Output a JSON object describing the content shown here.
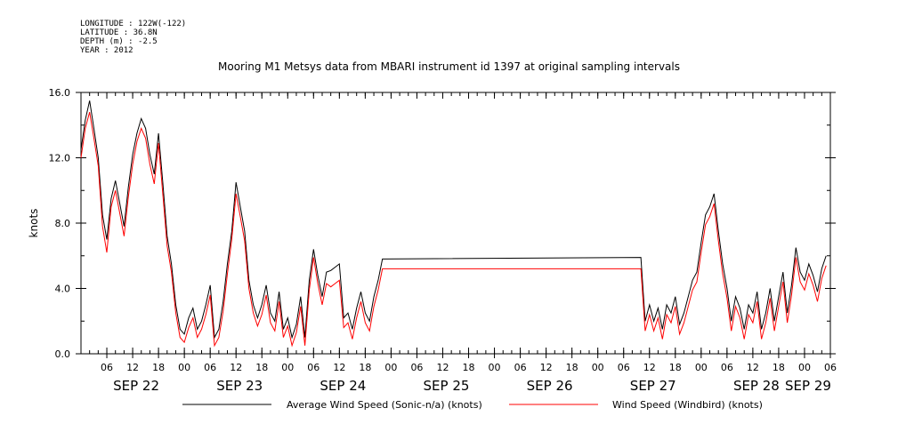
{
  "meta_lines": [
    "LONGITUDE : 122W(-122)",
    "LATITUDE : 36.8N",
    "DEPTH (m) : -2.5",
    "YEAR : 2012"
  ],
  "chart_data": {
    "type": "line",
    "title": "Mooring M1 Metsys data from MBARI instrument id 1397 at original sampling intervals",
    "ylabel": "knots",
    "xlabel": "",
    "ylim": [
      0,
      16
    ],
    "yticks": [
      "0.0",
      "4.0",
      "8.0",
      "12.0",
      "16.0"
    ],
    "xlim": [
      0,
      174
    ],
    "x_unit": "hours since SEP 22 00",
    "hour_tick_labels": [
      "06",
      "12",
      "18",
      "00",
      "06",
      "12",
      "18",
      "00",
      "06",
      "12",
      "18",
      "00",
      "06",
      "12",
      "18",
      "00",
      "06",
      "12",
      "18",
      "00",
      "06",
      "12",
      "18",
      "00",
      "06",
      "12",
      "18",
      "00",
      "06"
    ],
    "hour_tick_positions": [
      6,
      12,
      18,
      24,
      30,
      36,
      42,
      48,
      54,
      60,
      66,
      72,
      78,
      84,
      90,
      96,
      102,
      108,
      114,
      120,
      126,
      132,
      138,
      144,
      150,
      156,
      162,
      168,
      174
    ],
    "day_labels": [
      {
        "label": "SEP 22",
        "x": 12
      },
      {
        "label": "SEP 23",
        "x": 36
      },
      {
        "label": "SEP 24",
        "x": 60
      },
      {
        "label": "SEP 25",
        "x": 84
      },
      {
        "label": "SEP 26",
        "x": 108
      },
      {
        "label": "SEP 27",
        "x": 132
      },
      {
        "label": "SEP 28",
        "x": 156
      },
      {
        "label": "SEP 29",
        "x": 168
      }
    ],
    "series": [
      {
        "name": "Average Wind Speed (Sonic-n/a) (knots)",
        "color": "#000000",
        "x": [
          0,
          1,
          2,
          3,
          4,
          5,
          6,
          7,
          8,
          9,
          10,
          11,
          12,
          13,
          14,
          15,
          16,
          17,
          18,
          19,
          20,
          21,
          22,
          23,
          24,
          25,
          26,
          27,
          28,
          29,
          30,
          31,
          32,
          33,
          34,
          35,
          36,
          37,
          38,
          39,
          40,
          41,
          42,
          43,
          44,
          45,
          46,
          47,
          48,
          49,
          50,
          51,
          52,
          53,
          54,
          55,
          56,
          57,
          58,
          59,
          60,
          61,
          62,
          63,
          64,
          65,
          66,
          67,
          68,
          69,
          70,
          130,
          131,
          132,
          133,
          134,
          135,
          136,
          137,
          138,
          139,
          140,
          141,
          142,
          143,
          144,
          145,
          146,
          147,
          148,
          149,
          150,
          151,
          152,
          153,
          154,
          155,
          156,
          157,
          158,
          159,
          160,
          161,
          162,
          163,
          164,
          165,
          166,
          167,
          168,
          169,
          170,
          171,
          172,
          173
        ],
        "y": [
          12.5,
          14.3,
          15.5,
          13.8,
          12.0,
          8.5,
          7.0,
          9.5,
          10.6,
          9.2,
          7.8,
          10.2,
          12.2,
          13.5,
          14.4,
          13.8,
          12.2,
          11.0,
          13.5,
          10.5,
          7.2,
          5.5,
          3.0,
          1.5,
          1.2,
          2.2,
          2.8,
          1.5,
          2.0,
          3.0,
          4.2,
          1.0,
          1.5,
          3.2,
          5.5,
          7.5,
          10.5,
          9.0,
          7.5,
          4.5,
          3.0,
          2.2,
          3.0,
          4.2,
          2.5,
          2.0,
          3.8,
          1.5,
          2.2,
          1.0,
          1.8,
          3.5,
          1.0,
          4.5,
          6.4,
          4.8,
          3.5,
          5.0,
          5.1,
          5.3,
          5.5,
          2.2,
          2.5,
          1.5,
          2.8,
          3.8,
          2.5,
          2.0,
          3.5,
          4.5,
          5.8,
          5.9,
          2.0,
          3.0,
          2.0,
          2.8,
          1.5,
          3.0,
          2.5,
          3.5,
          1.8,
          2.5,
          3.5,
          4.5,
          5.0,
          6.8,
          8.5,
          9.0,
          9.8,
          7.5,
          5.5,
          4.0,
          2.0,
          3.5,
          2.8,
          1.5,
          3.0,
          2.5,
          3.8,
          1.5,
          2.5,
          4.0,
          2.0,
          3.5,
          5.0,
          2.5,
          4.2,
          6.5,
          5.0,
          4.5,
          5.5,
          4.8,
          3.8,
          5.2,
          6.0
        ],
        "path_breaks": []
      },
      {
        "name": "Wind Speed (Windbird) (knots)",
        "color": "#ff0000",
        "x": [
          0,
          1,
          2,
          3,
          4,
          5,
          6,
          7,
          8,
          9,
          10,
          11,
          12,
          13,
          14,
          15,
          16,
          17,
          18,
          19,
          20,
          21,
          22,
          23,
          24,
          25,
          26,
          27,
          28,
          29,
          30,
          31,
          32,
          33,
          34,
          35,
          36,
          37,
          38,
          39,
          40,
          41,
          42,
          43,
          44,
          45,
          46,
          47,
          48,
          49,
          50,
          51,
          52,
          53,
          54,
          55,
          56,
          57,
          58,
          59,
          60,
          61,
          62,
          63,
          64,
          65,
          66,
          67,
          68,
          69,
          70,
          130,
          131,
          132,
          133,
          134,
          135,
          136,
          137,
          138,
          139,
          140,
          141,
          142,
          143,
          144,
          145,
          146,
          147,
          148,
          149,
          150,
          151,
          152,
          153,
          154,
          155,
          156,
          157,
          158,
          159,
          160,
          161,
          162,
          163,
          164,
          165,
          166,
          167,
          168,
          169,
          170,
          171,
          172,
          173
        ],
        "y": [
          12.0,
          13.8,
          14.8,
          13.2,
          11.5,
          7.8,
          6.2,
          9.0,
          10.0,
          8.6,
          7.2,
          9.6,
          11.6,
          13.0,
          13.8,
          13.2,
          11.6,
          10.4,
          12.9,
          9.8,
          6.6,
          5.0,
          2.5,
          1.0,
          0.7,
          1.6,
          2.2,
          1.0,
          1.5,
          2.4,
          3.6,
          0.5,
          1.0,
          2.6,
          4.9,
          7.0,
          9.8,
          8.4,
          6.9,
          4.0,
          2.5,
          1.7,
          2.4,
          3.6,
          1.9,
          1.4,
          3.2,
          1.0,
          1.7,
          0.5,
          1.3,
          2.9,
          0.5,
          3.9,
          5.9,
          4.3,
          3.0,
          4.3,
          4.1,
          4.3,
          4.5,
          1.6,
          1.9,
          0.9,
          2.2,
          3.2,
          1.9,
          1.4,
          2.9,
          3.9,
          5.2,
          5.2,
          1.4,
          2.4,
          1.4,
          2.2,
          0.9,
          2.4,
          1.9,
          2.9,
          1.2,
          1.9,
          2.9,
          3.9,
          4.4,
          6.2,
          7.9,
          8.4,
          9.2,
          6.9,
          4.9,
          3.4,
          1.4,
          2.9,
          2.2,
          0.9,
          2.4,
          1.9,
          3.2,
          0.9,
          1.9,
          3.4,
          1.4,
          2.9,
          4.4,
          1.9,
          3.6,
          5.9,
          4.4,
          3.9,
          4.9,
          4.2,
          3.2,
          4.6,
          5.4
        ],
        "path_breaks": []
      }
    ],
    "legend_position": "bottom",
    "grid": false
  }
}
